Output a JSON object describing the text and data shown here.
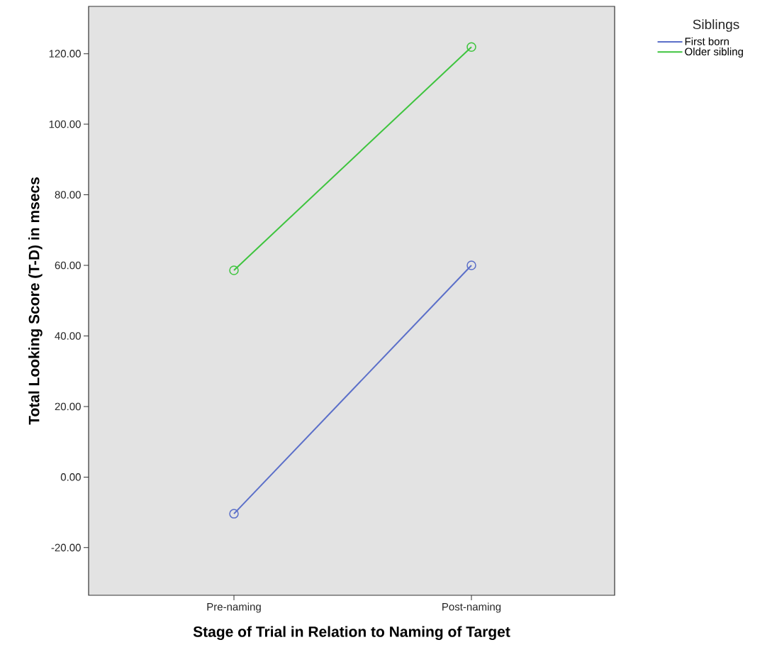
{
  "chart_data": {
    "type": "line",
    "xlabel": "Stage of Trial in Relation to Naming of Target",
    "ylabel": "Total Looking Score (T-D) in msecs",
    "legend_title": "Siblings",
    "categories": [
      "Pre-naming",
      "Post-naming"
    ],
    "series": [
      {
        "name": "First born",
        "color": "#5b6fc9",
        "values": [
          -10.4,
          60.0
        ]
      },
      {
        "name": "Older sibling",
        "color": "#3ec43e",
        "values": [
          58.6,
          121.9
        ]
      }
    ],
    "ylim": [
      -33.5,
      133.4
    ],
    "yticks": [
      {
        "value": -20,
        "label": "-20.00"
      },
      {
        "value": 0,
        "label": "0.00"
      },
      {
        "value": 20,
        "label": "20.00"
      },
      {
        "value": 40,
        "label": "40.00"
      },
      {
        "value": 60,
        "label": "60.00"
      },
      {
        "value": 80,
        "label": "80.00"
      },
      {
        "value": 100,
        "label": "100.00"
      },
      {
        "value": 120,
        "label": "120.00"
      }
    ],
    "marker": "circle",
    "legend": "top right",
    "grid": false
  }
}
